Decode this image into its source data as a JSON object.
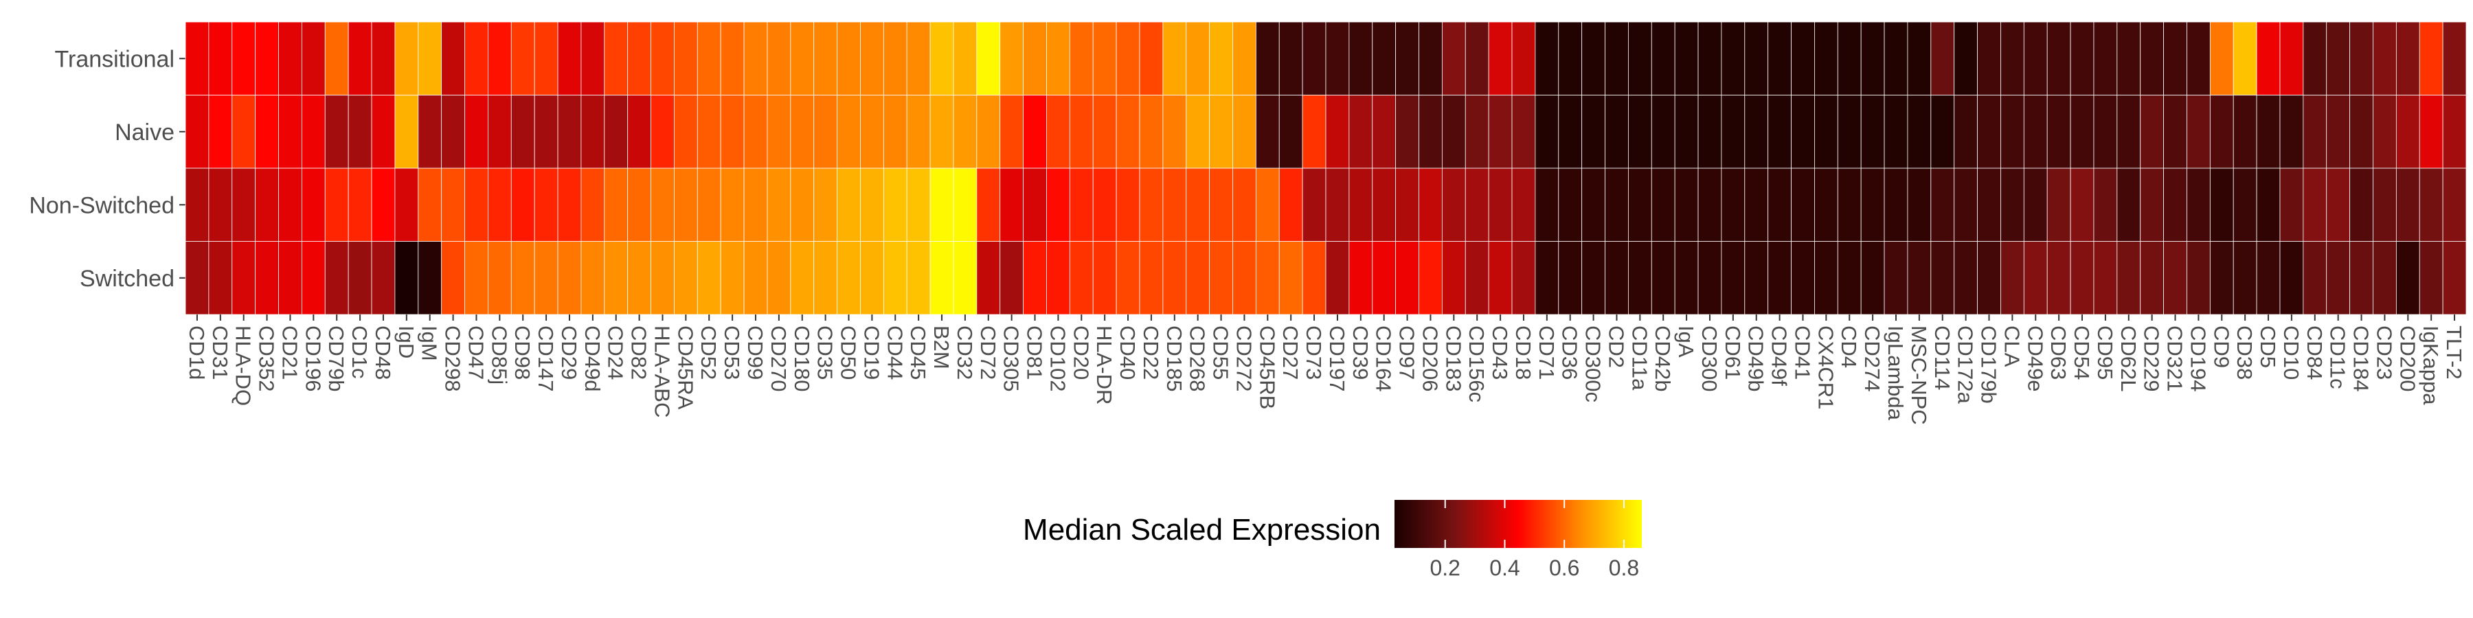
{
  "chart_data": {
    "type": "heatmap",
    "rows": [
      "Transitional",
      "Naive",
      "Non-Switched",
      "Switched"
    ],
    "columns": [
      "CD1d",
      "CD31",
      "HLA-DQ",
      "CD352",
      "CD21",
      "CD196",
      "CD79b",
      "CD1c",
      "CD48",
      "IgD",
      "IgM",
      "CD298",
      "CD47",
      "CD85j",
      "CD98",
      "CD147",
      "CD29",
      "CD49d",
      "CD24",
      "CD82",
      "HLA-ABC",
      "CD45RA",
      "CD52",
      "CD53",
      "CD99",
      "CD270",
      "CD180",
      "CD35",
      "CD50",
      "CD19",
      "CD44",
      "CD45",
      "B2M",
      "CD32",
      "CD72",
      "CD305",
      "CD81",
      "CD102",
      "CD20",
      "HLA-DR",
      "CD40",
      "CD22",
      "CD185",
      "CD268",
      "CD55",
      "CD272",
      "CD45RB",
      "CD27",
      "CD73",
      "CD197",
      "CD39",
      "CD164",
      "CD97",
      "CD206",
      "CD183",
      "CD156c",
      "CD43",
      "CD18",
      "CD71",
      "CD36",
      "CD300c",
      "CD2",
      "CD11a",
      "CD42b",
      "IgA",
      "CD300",
      "CD61",
      "CD49b",
      "CD49f",
      "CD41",
      "CX4CR1",
      "CD4",
      "CD274",
      "IgLambda",
      "MSC-NPC",
      "CD114",
      "CD172a",
      "CD179b",
      "CLA",
      "CD49e",
      "CD63",
      "CD54",
      "CD95",
      "CD62L",
      "CD229",
      "CD321",
      "CD194",
      "CD9",
      "CD38",
      "CD5",
      "CD10",
      "CD84",
      "CD11c",
      "CD184",
      "CD23",
      "CD200",
      "IgKappa",
      "TLT-2"
    ],
    "values": [
      [
        0.42,
        0.43,
        0.45,
        0.45,
        0.4,
        0.38,
        0.6,
        0.4,
        0.38,
        0.7,
        0.72,
        0.35,
        0.5,
        0.47,
        0.53,
        0.53,
        0.4,
        0.38,
        0.54,
        0.54,
        0.55,
        0.57,
        0.6,
        0.6,
        0.63,
        0.63,
        0.64,
        0.64,
        0.64,
        0.64,
        0.64,
        0.65,
        0.75,
        0.72,
        0.85,
        0.68,
        0.65,
        0.66,
        0.6,
        0.6,
        0.58,
        0.55,
        0.7,
        0.68,
        0.72,
        0.68,
        0.1,
        0.1,
        0.12,
        0.12,
        0.1,
        0.1,
        0.1,
        0.1,
        0.25,
        0.2,
        0.38,
        0.35,
        0.05,
        0.05,
        0.05,
        0.05,
        0.05,
        0.05,
        0.05,
        0.05,
        0.05,
        0.05,
        0.05,
        0.05,
        0.05,
        0.05,
        0.05,
        0.05,
        0.05,
        0.2,
        0.05,
        0.12,
        0.12,
        0.12,
        0.12,
        0.12,
        0.12,
        0.12,
        0.12,
        0.12,
        0.12,
        0.62,
        0.75,
        0.42,
        0.4,
        0.15,
        0.18,
        0.2,
        0.25,
        0.25,
        0.52,
        0.25
      ],
      [
        0.4,
        0.45,
        0.52,
        0.45,
        0.42,
        0.42,
        0.3,
        0.3,
        0.4,
        0.72,
        0.3,
        0.3,
        0.4,
        0.36,
        0.3,
        0.3,
        0.3,
        0.32,
        0.3,
        0.36,
        0.5,
        0.56,
        0.58,
        0.58,
        0.6,
        0.62,
        0.62,
        0.62,
        0.64,
        0.64,
        0.64,
        0.66,
        0.7,
        0.68,
        0.66,
        0.55,
        0.45,
        0.54,
        0.55,
        0.56,
        0.58,
        0.6,
        0.63,
        0.7,
        0.7,
        0.68,
        0.12,
        0.1,
        0.52,
        0.35,
        0.3,
        0.3,
        0.2,
        0.15,
        0.15,
        0.22,
        0.25,
        0.25,
        0.05,
        0.05,
        0.05,
        0.05,
        0.05,
        0.05,
        0.05,
        0.05,
        0.05,
        0.05,
        0.05,
        0.05,
        0.05,
        0.05,
        0.05,
        0.05,
        0.05,
        0.05,
        0.1,
        0.12,
        0.12,
        0.12,
        0.12,
        0.12,
        0.12,
        0.12,
        0.2,
        0.15,
        0.2,
        0.15,
        0.12,
        0.1,
        0.1,
        0.2,
        0.2,
        0.18,
        0.25,
        0.3,
        0.4,
        0.3
      ],
      [
        0.32,
        0.33,
        0.34,
        0.38,
        0.4,
        0.42,
        0.5,
        0.5,
        0.45,
        0.38,
        0.56,
        0.56,
        0.52,
        0.5,
        0.48,
        0.5,
        0.5,
        0.55,
        0.6,
        0.6,
        0.62,
        0.62,
        0.62,
        0.64,
        0.64,
        0.66,
        0.66,
        0.68,
        0.72,
        0.72,
        0.75,
        0.75,
        0.85,
        0.85,
        0.52,
        0.4,
        0.38,
        0.46,
        0.5,
        0.5,
        0.52,
        0.55,
        0.55,
        0.55,
        0.55,
        0.55,
        0.6,
        0.5,
        0.3,
        0.3,
        0.32,
        0.32,
        0.32,
        0.35,
        0.3,
        0.3,
        0.3,
        0.3,
        0.08,
        0.08,
        0.08,
        0.08,
        0.08,
        0.08,
        0.08,
        0.08,
        0.08,
        0.08,
        0.08,
        0.08,
        0.08,
        0.08,
        0.08,
        0.08,
        0.08,
        0.12,
        0.12,
        0.12,
        0.12,
        0.12,
        0.22,
        0.25,
        0.2,
        0.12,
        0.2,
        0.15,
        0.12,
        0.08,
        0.1,
        0.08,
        0.2,
        0.25,
        0.25,
        0.15,
        0.2,
        0.2,
        0.22,
        0.25
      ],
      [
        0.3,
        0.32,
        0.38,
        0.4,
        0.4,
        0.42,
        0.3,
        0.28,
        0.3,
        0.03,
        0.06,
        0.55,
        0.6,
        0.6,
        0.62,
        0.62,
        0.62,
        0.64,
        0.66,
        0.66,
        0.66,
        0.68,
        0.7,
        0.68,
        0.66,
        0.66,
        0.7,
        0.7,
        0.72,
        0.72,
        0.75,
        0.75,
        0.85,
        0.85,
        0.35,
        0.3,
        0.48,
        0.48,
        0.52,
        0.52,
        0.55,
        0.55,
        0.55,
        0.55,
        0.56,
        0.56,
        0.58,
        0.6,
        0.55,
        0.3,
        0.42,
        0.42,
        0.42,
        0.48,
        0.35,
        0.3,
        0.35,
        0.3,
        0.08,
        0.08,
        0.08,
        0.08,
        0.08,
        0.08,
        0.08,
        0.08,
        0.08,
        0.08,
        0.08,
        0.08,
        0.08,
        0.08,
        0.08,
        0.12,
        0.12,
        0.12,
        0.12,
        0.12,
        0.22,
        0.25,
        0.25,
        0.25,
        0.25,
        0.22,
        0.22,
        0.22,
        0.18,
        0.1,
        0.1,
        0.1,
        0.08,
        0.2,
        0.2,
        0.2,
        0.2,
        0.08,
        0.2,
        0.25
      ]
    ],
    "colorscale": [
      "#1a0000",
      "#7b1212",
      "#ff0000",
      "#ff8c00",
      "#ffff00"
    ],
    "legend": {
      "title": "Median Scaled Expression",
      "ticks": [
        0.2,
        0.4,
        0.6,
        0.8
      ],
      "tick_labels": [
        "0.2",
        "0.4",
        "0.6",
        "0.8"
      ],
      "range": [
        0.03,
        0.86
      ],
      "placement": "bottom"
    }
  }
}
